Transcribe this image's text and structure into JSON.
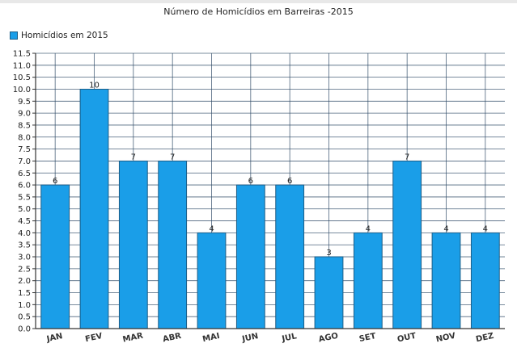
{
  "chart_data": {
    "type": "bar",
    "title": "Número de Homicídios em Barreiras -2015",
    "xlabel": "",
    "ylabel": "",
    "ylim": [
      0,
      11.5
    ],
    "ytick_step": 0.5,
    "grid": true,
    "legend_position": "top-left",
    "categories": [
      "JAN",
      "FEV",
      "MAR",
      "ABR",
      "MAI",
      "JUN",
      "JUL",
      "AGO",
      "SET",
      "OUT",
      "NOV",
      "DEZ"
    ],
    "series": [
      {
        "name": "Homicídios em 2015",
        "values": [
          6,
          10,
          7,
          7,
          4,
          6,
          6,
          3,
          4,
          7,
          4,
          4
        ],
        "color": "#1a9ee8",
        "data_labels": [
          "6",
          "10",
          "7",
          "7",
          "4",
          "6",
          "6",
          "3",
          "4",
          "7",
          "4",
          "4"
        ]
      }
    ],
    "yticks": [
      "0.0",
      "0.5",
      "1.0",
      "1.5",
      "2.0",
      "2.5",
      "3.0",
      "3.5",
      "4.0",
      "4.5",
      "5.0",
      "5.5",
      "6.0",
      "6.5",
      "7.0",
      "7.5",
      "8.0",
      "8.5",
      "9.0",
      "9.5",
      "10.0",
      "10.5",
      "11.0",
      "11.5"
    ]
  },
  "colors": {
    "bar": "#1a9ee8",
    "bar_border": "#1d5e88",
    "grid": "#2e4a66",
    "axis": "#333333"
  }
}
